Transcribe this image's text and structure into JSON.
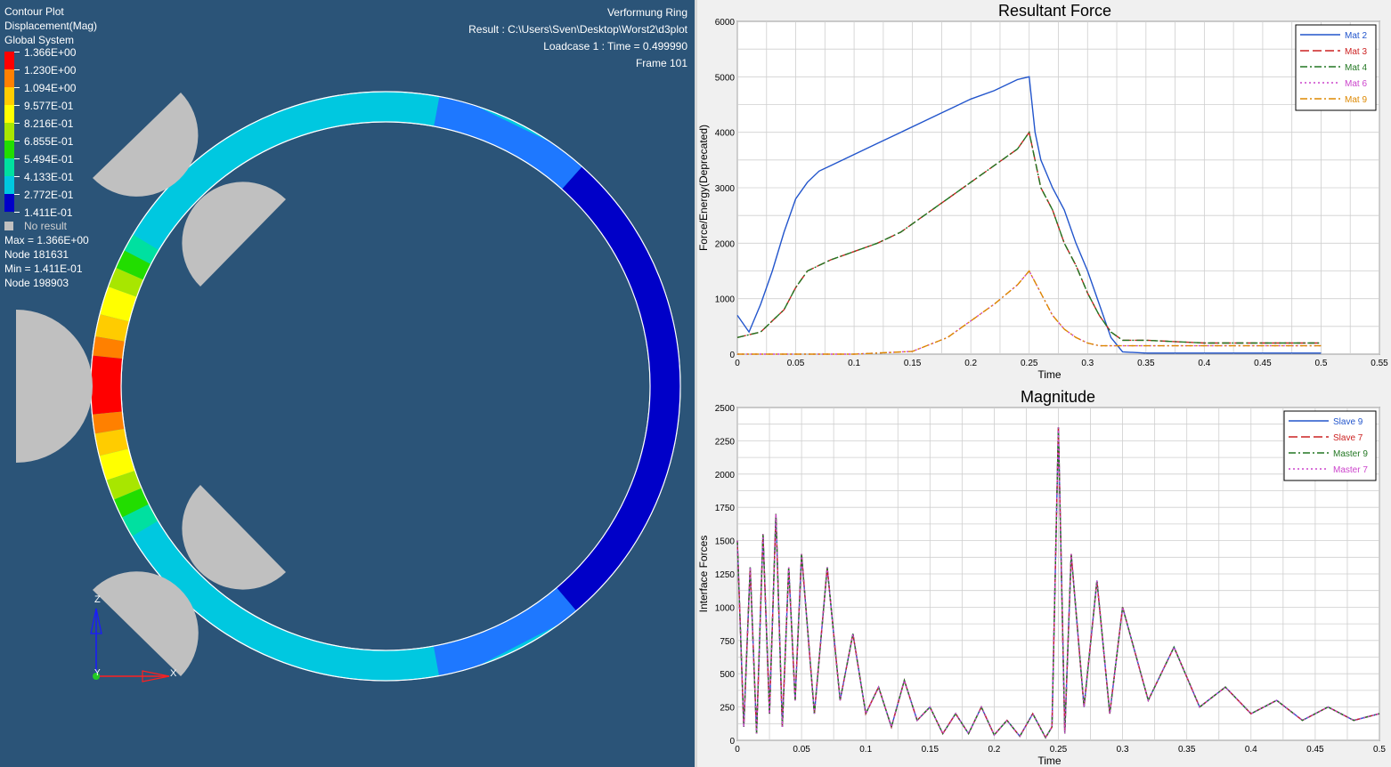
{
  "viewport": {
    "plot_info": [
      "Contour Plot",
      "Displacement(Mag)",
      "Global System"
    ],
    "legend": [
      {
        "label": "1.366E+00",
        "color": "#ff0000"
      },
      {
        "label": "1.230E+00",
        "color": "#ff8000"
      },
      {
        "label": "1.094E+00",
        "color": "#ffcc00"
      },
      {
        "label": "9.577E-01",
        "color": "#ffff00"
      },
      {
        "label": "8.216E-01",
        "color": "#a8e600"
      },
      {
        "label": "6.855E-01",
        "color": "#22dd00"
      },
      {
        "label": "5.494E-01",
        "color": "#00e0a0"
      },
      {
        "label": "4.133E-01",
        "color": "#00c8e0"
      },
      {
        "label": "2.772E-01",
        "color": "#1e78ff"
      },
      {
        "label": "1.411E-01",
        "color": "#0000c8"
      }
    ],
    "no_result": "No result",
    "stats": [
      "Max = 1.366E+00",
      "Node 181631",
      "Min = 1.411E-01",
      "Node 198903"
    ],
    "top_right": [
      "Verformung Ring",
      "Result :  C:\\Users\\Sven\\Desktop\\Worst2\\d3plot",
      "Loadcase 1 : Time = 0.499990",
      "Frame 101"
    ],
    "axis_labels": {
      "z": "Z",
      "y": "Y",
      "x": "X"
    }
  },
  "plot1": {
    "chart_data": {
      "type": "line",
      "title": "Resultant Force",
      "xlabel": "Time",
      "ylabel": "Force/Energy(Deprecated)",
      "xlim": [
        0,
        0.55
      ],
      "ylim": [
        0,
        6000
      ],
      "xticks": [
        "0",
        "0.05",
        "0.1",
        "0.15",
        "0.2",
        "0.25",
        "0.3",
        "0.35",
        "0.4",
        "0.45",
        "0.5",
        "0.55"
      ],
      "yticks": [
        "0",
        "1000",
        "2000",
        "3000",
        "4000",
        "5000",
        "6000"
      ],
      "grid": true,
      "legend_position": "top-right",
      "series": [
        {
          "name": "Mat 2",
          "color": "#2255cc",
          "dash": "",
          "x": [
            0,
            0.01,
            0.02,
            0.03,
            0.04,
            0.05,
            0.06,
            0.07,
            0.08,
            0.1,
            0.12,
            0.14,
            0.16,
            0.18,
            0.2,
            0.22,
            0.24,
            0.25,
            0.255,
            0.26,
            0.27,
            0.28,
            0.29,
            0.3,
            0.31,
            0.32,
            0.33,
            0.35,
            0.4,
            0.45,
            0.5
          ],
          "y": [
            700,
            400,
            900,
            1500,
            2200,
            2800,
            3100,
            3300,
            3400,
            3600,
            3800,
            4000,
            4200,
            4400,
            4600,
            4750,
            4950,
            5000,
            4000,
            3500,
            3000,
            2600,
            2000,
            1500,
            900,
            300,
            40,
            20,
            20,
            20,
            20
          ]
        },
        {
          "name": "Mat 3",
          "color": "#cc2222",
          "dash": "10,4",
          "x": [
            0,
            0.02,
            0.04,
            0.05,
            0.06,
            0.08,
            0.1,
            0.12,
            0.14,
            0.16,
            0.18,
            0.2,
            0.22,
            0.24,
            0.25,
            0.26,
            0.27,
            0.28,
            0.29,
            0.3,
            0.31,
            0.32,
            0.33,
            0.35,
            0.4,
            0.45,
            0.5
          ],
          "y": [
            300,
            400,
            800,
            1200,
            1500,
            1700,
            1850,
            2000,
            2200,
            2500,
            2800,
            3100,
            3400,
            3700,
            4000,
            3000,
            2600,
            2000,
            1600,
            1100,
            700,
            400,
            250,
            250,
            200,
            200,
            200
          ]
        },
        {
          "name": "Mat 4",
          "color": "#227722",
          "dash": "8,3,2,3",
          "x": [
            0,
            0.02,
            0.04,
            0.05,
            0.06,
            0.08,
            0.1,
            0.12,
            0.14,
            0.16,
            0.18,
            0.2,
            0.22,
            0.24,
            0.25,
            0.26,
            0.27,
            0.28,
            0.29,
            0.3,
            0.31,
            0.32,
            0.33,
            0.35,
            0.4,
            0.45,
            0.5
          ],
          "y": [
            300,
            400,
            800,
            1200,
            1500,
            1700,
            1850,
            2000,
            2200,
            2500,
            2800,
            3100,
            3400,
            3700,
            4000,
            3000,
            2600,
            2000,
            1600,
            1100,
            700,
            400,
            250,
            250,
            200,
            200,
            200
          ]
        },
        {
          "name": "Mat 6",
          "color": "#cc44cc",
          "dash": "2,3",
          "x": [
            0,
            0.05,
            0.1,
            0.15,
            0.18,
            0.2,
            0.22,
            0.24,
            0.25,
            0.26,
            0.27,
            0.28,
            0.29,
            0.3,
            0.31,
            0.32,
            0.33,
            0.35,
            0.4,
            0.45,
            0.5
          ],
          "y": [
            0,
            0,
            0,
            50,
            300,
            600,
            900,
            1250,
            1500,
            1100,
            700,
            450,
            300,
            200,
            150,
            150,
            150,
            150,
            150,
            150,
            150
          ]
        },
        {
          "name": "Mat 9",
          "color": "#dd8800",
          "dash": "8,3,2,3",
          "x": [
            0,
            0.05,
            0.1,
            0.15,
            0.18,
            0.2,
            0.22,
            0.24,
            0.25,
            0.26,
            0.27,
            0.28,
            0.29,
            0.3,
            0.31,
            0.32,
            0.33,
            0.35,
            0.4,
            0.45,
            0.5
          ],
          "y": [
            0,
            0,
            0,
            50,
            300,
            600,
            900,
            1250,
            1500,
            1100,
            700,
            450,
            300,
            200,
            150,
            150,
            150,
            150,
            150,
            150,
            150
          ]
        }
      ]
    }
  },
  "plot2": {
    "chart_data": {
      "type": "line",
      "title": "Magnitude",
      "xlabel": "Time",
      "ylabel": "Interface Forces",
      "xlim": [
        0,
        0.5
      ],
      "ylim": [
        0,
        2500
      ],
      "xticks": [
        "0",
        "0.05",
        "0.1",
        "0.15",
        "0.2",
        "0.25",
        "0.3",
        "0.35",
        "0.4",
        "0.45",
        "0.5"
      ],
      "yticks": [
        "0",
        "250",
        "500",
        "750",
        "1000",
        "1250",
        "1500",
        "1750",
        "2000",
        "2250",
        "2500"
      ],
      "grid": true,
      "legend_position": "top-right",
      "series": [
        {
          "name": "Slave 9",
          "color": "#2255cc",
          "dash": "",
          "x": [
            0,
            0.005,
            0.01,
            0.015,
            0.02,
            0.025,
            0.03,
            0.035,
            0.04,
            0.045,
            0.05,
            0.06,
            0.07,
            0.08,
            0.09,
            0.1,
            0.11,
            0.12,
            0.13,
            0.14,
            0.15,
            0.16,
            0.17,
            0.18,
            0.19,
            0.2,
            0.21,
            0.22,
            0.23,
            0.24,
            0.245,
            0.25,
            0.255,
            0.26,
            0.27,
            0.28,
            0.29,
            0.3,
            0.32,
            0.34,
            0.36,
            0.38,
            0.4,
            0.42,
            0.44,
            0.46,
            0.48,
            0.5
          ],
          "y": [
            1500,
            100,
            1300,
            50,
            1550,
            200,
            1700,
            100,
            1300,
            300,
            1400,
            200,
            1300,
            300,
            800,
            200,
            400,
            100,
            450,
            150,
            250,
            50,
            200,
            50,
            250,
            40,
            150,
            30,
            200,
            20,
            100,
            2350,
            50,
            1400,
            250,
            1200,
            200,
            1000,
            300,
            700,
            250,
            400,
            200,
            300,
            150,
            250,
            150,
            200
          ]
        },
        {
          "name": "Slave 7",
          "color": "#cc2222",
          "dash": "10,4",
          "x": [
            0,
            0.005,
            0.01,
            0.015,
            0.02,
            0.025,
            0.03,
            0.035,
            0.04,
            0.045,
            0.05,
            0.06,
            0.07,
            0.08,
            0.09,
            0.1,
            0.11,
            0.12,
            0.13,
            0.14,
            0.15,
            0.16,
            0.17,
            0.18,
            0.19,
            0.2,
            0.21,
            0.22,
            0.23,
            0.24,
            0.245,
            0.25,
            0.255,
            0.26,
            0.27,
            0.28,
            0.29,
            0.3,
            0.32,
            0.34,
            0.36,
            0.38,
            0.4,
            0.42,
            0.44,
            0.46,
            0.48,
            0.5
          ],
          "y": [
            1500,
            100,
            1300,
            50,
            1550,
            200,
            1700,
            100,
            1300,
            300,
            1400,
            200,
            1300,
            300,
            800,
            200,
            400,
            100,
            450,
            150,
            250,
            50,
            200,
            50,
            250,
            40,
            150,
            30,
            200,
            20,
            100,
            2350,
            50,
            1400,
            250,
            1200,
            200,
            1000,
            300,
            700,
            250,
            400,
            200,
            300,
            150,
            250,
            150,
            200
          ]
        },
        {
          "name": "Master 9",
          "color": "#227722",
          "dash": "8,3,2,3",
          "x": [
            0,
            0.005,
            0.01,
            0.015,
            0.02,
            0.025,
            0.03,
            0.035,
            0.04,
            0.045,
            0.05,
            0.06,
            0.07,
            0.08,
            0.09,
            0.1,
            0.11,
            0.12,
            0.13,
            0.14,
            0.15,
            0.16,
            0.17,
            0.18,
            0.19,
            0.2,
            0.21,
            0.22,
            0.23,
            0.24,
            0.245,
            0.25,
            0.255,
            0.26,
            0.27,
            0.28,
            0.29,
            0.3,
            0.32,
            0.34,
            0.36,
            0.38,
            0.4,
            0.42,
            0.44,
            0.46,
            0.48,
            0.5
          ],
          "y": [
            1500,
            100,
            1300,
            50,
            1550,
            200,
            1700,
            100,
            1300,
            300,
            1400,
            200,
            1300,
            300,
            800,
            200,
            400,
            100,
            450,
            150,
            250,
            50,
            200,
            50,
            250,
            40,
            150,
            30,
            200,
            20,
            100,
            2350,
            50,
            1400,
            250,
            1200,
            200,
            1000,
            300,
            700,
            250,
            400,
            200,
            300,
            150,
            250,
            150,
            200
          ]
        },
        {
          "name": "Master 7",
          "color": "#cc44cc",
          "dash": "2,3",
          "x": [
            0,
            0.005,
            0.01,
            0.015,
            0.02,
            0.025,
            0.03,
            0.035,
            0.04,
            0.045,
            0.05,
            0.06,
            0.07,
            0.08,
            0.09,
            0.1,
            0.11,
            0.12,
            0.13,
            0.14,
            0.15,
            0.16,
            0.17,
            0.18,
            0.19,
            0.2,
            0.21,
            0.22,
            0.23,
            0.24,
            0.245,
            0.25,
            0.255,
            0.26,
            0.27,
            0.28,
            0.29,
            0.3,
            0.32,
            0.34,
            0.36,
            0.38,
            0.4,
            0.42,
            0.44,
            0.46,
            0.48,
            0.5
          ],
          "y": [
            1500,
            100,
            1300,
            50,
            1550,
            200,
            1700,
            100,
            1300,
            300,
            1400,
            200,
            1300,
            300,
            800,
            200,
            400,
            100,
            450,
            150,
            250,
            50,
            200,
            50,
            250,
            40,
            150,
            30,
            200,
            20,
            100,
            2350,
            50,
            1400,
            250,
            1200,
            200,
            1000,
            300,
            700,
            250,
            400,
            200,
            300,
            150,
            250,
            150,
            200
          ]
        }
      ]
    }
  }
}
